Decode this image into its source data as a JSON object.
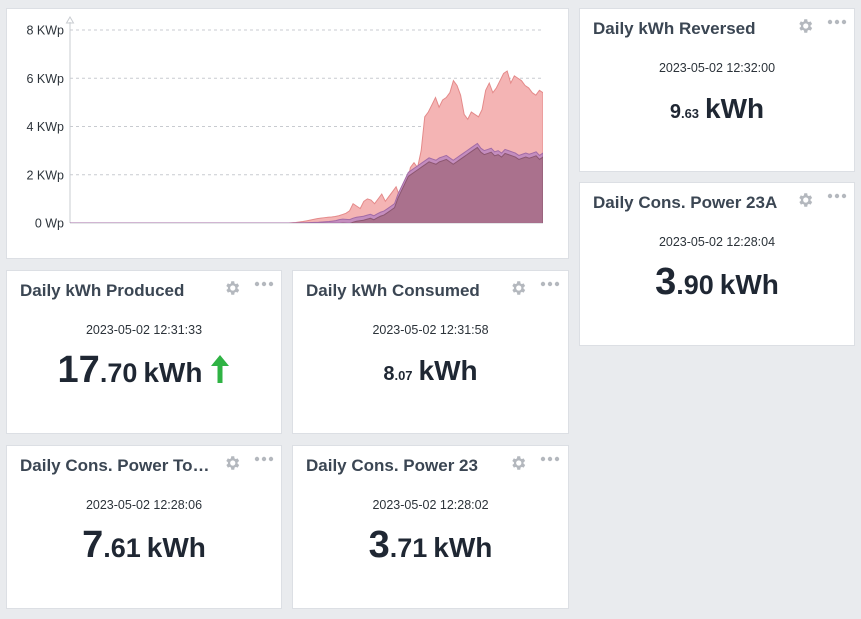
{
  "chart_data": {
    "type": "area",
    "y_tick_labels": [
      "0 Wp",
      "2 KWp",
      "4 KWp",
      "6 KWp",
      "8 KWp"
    ],
    "ylim": [
      0,
      8000
    ],
    "grid": true,
    "series": [
      {
        "color": "#f4b4b4",
        "stroke": "#e48a8a",
        "values": [
          0,
          0,
          0,
          0,
          0,
          0,
          0,
          0,
          0,
          0,
          0,
          0,
          0,
          0,
          0,
          0,
          0,
          0,
          0,
          0,
          0,
          0,
          0,
          0,
          0,
          0,
          0,
          0,
          0,
          0,
          0,
          0,
          0,
          0,
          0,
          0,
          0,
          0,
          0,
          0,
          0,
          0,
          0,
          0,
          0,
          0,
          0,
          0,
          0,
          0,
          0,
          0,
          0,
          0,
          0,
          0,
          0,
          0,
          0,
          0,
          0,
          0,
          10,
          20,
          40,
          60,
          90,
          120,
          150,
          180,
          200,
          220,
          240,
          250,
          270,
          300,
          350,
          400,
          500,
          800,
          700,
          600,
          900,
          1000,
          950,
          800,
          1000,
          1200,
          900,
          1100,
          1300,
          1500,
          1100,
          1300,
          1600,
          2300,
          2500,
          2300,
          3000,
          4400,
          4600,
          4900,
          5200,
          4800,
          5100,
          5200,
          5400,
          5900,
          5700,
          5300,
          4500,
          4300,
          4600,
          4500,
          4400,
          4700,
          5500,
          5800,
          5400,
          5600,
          5900,
          6200,
          6300,
          5800,
          6100,
          6000,
          5900,
          5700,
          5600,
          5400,
          5300,
          5500,
          5400
        ]
      },
      {
        "color": "#c18bbf",
        "stroke": "#a36ba5",
        "values": [
          0,
          0,
          0,
          0,
          0,
          0,
          0,
          0,
          0,
          0,
          0,
          0,
          0,
          0,
          0,
          0,
          0,
          0,
          0,
          0,
          0,
          0,
          0,
          0,
          0,
          0,
          0,
          0,
          0,
          0,
          0,
          0,
          0,
          0,
          0,
          0,
          0,
          0,
          0,
          0,
          0,
          0,
          0,
          0,
          0,
          0,
          0,
          0,
          0,
          0,
          0,
          0,
          0,
          0,
          0,
          0,
          0,
          0,
          0,
          0,
          0,
          0,
          0,
          0,
          0,
          5,
          5,
          10,
          10,
          15,
          20,
          25,
          30,
          40,
          50,
          60,
          80,
          100,
          140,
          160,
          150,
          140,
          200,
          240,
          260,
          280,
          320,
          360,
          300,
          380,
          450,
          500,
          600,
          700,
          800,
          1200,
          1500,
          1800,
          2100,
          2200,
          2300,
          2400,
          2500,
          2600,
          2700,
          2650,
          2600,
          2700,
          2750,
          2800,
          2700,
          2600,
          2700,
          2800,
          2900,
          3000,
          3100,
          3200,
          3300,
          3100,
          3000,
          3050,
          3100,
          2950,
          3000,
          2900,
          3050,
          3000,
          2950,
          2900,
          2800,
          2850,
          2900,
          2850,
          2900,
          2950,
          2800,
          2900
        ]
      },
      {
        "color": "#a76e87",
        "stroke": "#8c5670",
        "values": [
          0,
          0,
          0,
          0,
          0,
          0,
          0,
          0,
          0,
          0,
          0,
          0,
          0,
          0,
          0,
          0,
          0,
          0,
          0,
          0,
          0,
          0,
          0,
          0,
          0,
          0,
          0,
          0,
          0,
          0,
          0,
          0,
          0,
          0,
          0,
          0,
          0,
          0,
          0,
          0,
          0,
          0,
          0,
          0,
          0,
          0,
          0,
          0,
          0,
          0,
          0,
          0,
          0,
          0,
          0,
          0,
          0,
          0,
          0,
          0,
          0,
          0,
          0,
          0,
          0,
          5,
          5,
          10,
          10,
          15,
          20,
          25,
          30,
          40,
          50,
          60,
          80,
          100,
          140,
          160,
          150,
          140,
          200,
          240,
          260,
          280,
          320,
          360,
          300,
          380,
          450,
          500,
          600,
          700,
          800,
          1200,
          1500,
          1800,
          2100,
          2200,
          2300,
          2400,
          2500,
          2600,
          2700,
          2650,
          2600,
          2700,
          2750,
          2800,
          2700,
          2600,
          2700,
          2800,
          2900,
          3000,
          3100,
          3200,
          3300,
          3100,
          3000,
          3050,
          3100,
          2950,
          3000,
          2900,
          3050,
          3000,
          2950,
          2900,
          2800,
          2850,
          2900,
          2850,
          2900,
          2950,
          2800,
          2900
        ]
      }
    ]
  },
  "widgets": {
    "reversed": {
      "title": "Daily kWh Reversed",
      "timestamp": "2023-05-02 12:32:00",
      "int": "9",
      "dec": ".63",
      "unit": "kWh"
    },
    "power23a": {
      "title": "Daily Cons. Power 23A",
      "timestamp": "2023-05-02 12:28:04",
      "int": "3",
      "dec": ".90",
      "unit": "kWh"
    },
    "produced": {
      "title": "Daily kWh Produced",
      "timestamp": "2023-05-02 12:31:33",
      "int": "17",
      "dec": ".70",
      "unit": "kWh",
      "trend_icon": "arrow-up-icon",
      "trend_color": "#2fb344"
    },
    "consumed": {
      "title": "Daily kWh Consumed",
      "timestamp": "2023-05-02 12:31:58",
      "int": "8",
      "dec": ".07",
      "unit": "kWh"
    },
    "total": {
      "title": "Daily Cons. Power To…",
      "timestamp": "2023-05-02 12:28:06",
      "int": "7",
      "dec": ".61",
      "unit": "kWh"
    },
    "power23": {
      "title": "Daily Cons. Power 23",
      "timestamp": "2023-05-02 12:28:02",
      "int": "3",
      "dec": ".71",
      "unit": "kWh"
    }
  },
  "icons": {
    "settings": "gear-icon",
    "menu": "more-dots-icon"
  },
  "colors": {
    "icon": "#b4b8be",
    "background": "#e9ebee"
  }
}
